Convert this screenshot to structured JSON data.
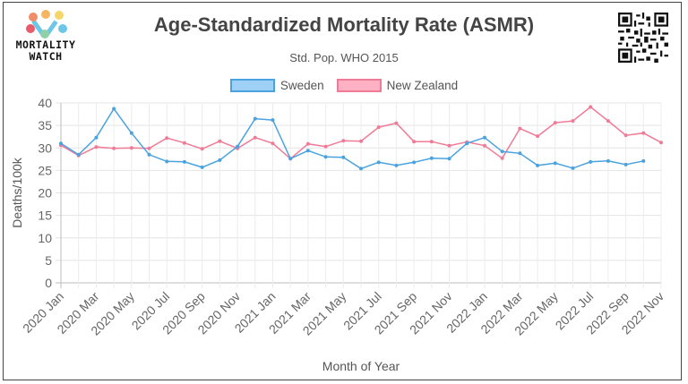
{
  "branding": {
    "logo_line1": "MORTALITY",
    "logo_line2": "WATCH"
  },
  "chart_data": {
    "type": "line",
    "title": "Age-Standardized Mortality Rate (ASMR)",
    "subtitle": "Std. Pop. WHO 2015",
    "xlabel": "Month of Year",
    "ylabel": "Deaths/100k",
    "ylim": [
      0,
      40
    ],
    "yticks": [
      0,
      5,
      10,
      15,
      20,
      25,
      30,
      35,
      40
    ],
    "grid": true,
    "legend_position": "top-center",
    "x": [
      "2020 Jan",
      "2020 Feb",
      "2020 Mar",
      "2020 Apr",
      "2020 May",
      "2020 Jun",
      "2020 Jul",
      "2020 Aug",
      "2020 Sep",
      "2020 Oct",
      "2020 Nov",
      "2020 Dec",
      "2021 Jan",
      "2021 Feb",
      "2021 Mar",
      "2021 Apr",
      "2021 May",
      "2021 Jun",
      "2021 Jul",
      "2021 Aug",
      "2021 Sep",
      "2021 Oct",
      "2021 Nov",
      "2021 Dec",
      "2022 Jan",
      "2022 Feb",
      "2022 Mar",
      "2022 Apr",
      "2022 May",
      "2022 Jun",
      "2022 Jul",
      "2022 Aug",
      "2022 Sep",
      "2022 Oct",
      "2022 Nov"
    ],
    "x_tick_labels": [
      "2020 Jan",
      "2020 Mar",
      "2020 May",
      "2020 Jul",
      "2020 Sep",
      "2020 Nov",
      "2021 Jan",
      "2021 Mar",
      "2021 May",
      "2021 Jul",
      "2021 Sep",
      "2021 Nov",
      "2022 Jan",
      "2022 Mar",
      "2022 May",
      "2022 Jul",
      "2022 Sep",
      "2022 Nov"
    ],
    "series": [
      {
        "name": "Sweden",
        "color": "#4aa3df",
        "fill": "#9fd0f5",
        "values": [
          31.0,
          28.5,
          32.3,
          38.7,
          33.3,
          28.5,
          27.0,
          26.9,
          25.7,
          27.3,
          30.3,
          36.5,
          36.2,
          27.6,
          29.4,
          28.0,
          27.9,
          25.4,
          26.8,
          26.1,
          26.8,
          27.7,
          27.6,
          31.0,
          32.3,
          29.2,
          28.8,
          26.1,
          26.6,
          25.5,
          26.9,
          27.1,
          26.3,
          27.1,
          null
        ]
      },
      {
        "name": "New Zealand",
        "color": "#f07b97",
        "fill": "#ffb1c3",
        "values": [
          30.6,
          28.3,
          30.2,
          29.9,
          30.0,
          29.9,
          32.2,
          31.1,
          29.8,
          31.5,
          29.9,
          32.3,
          31.0,
          27.6,
          30.9,
          30.3,
          31.6,
          31.5,
          34.6,
          35.5,
          31.4,
          31.4,
          30.5,
          31.3,
          30.5,
          27.7,
          34.3,
          32.6,
          35.6,
          36.0,
          39.1,
          36.0,
          32.8,
          33.3,
          31.2
        ]
      }
    ]
  }
}
